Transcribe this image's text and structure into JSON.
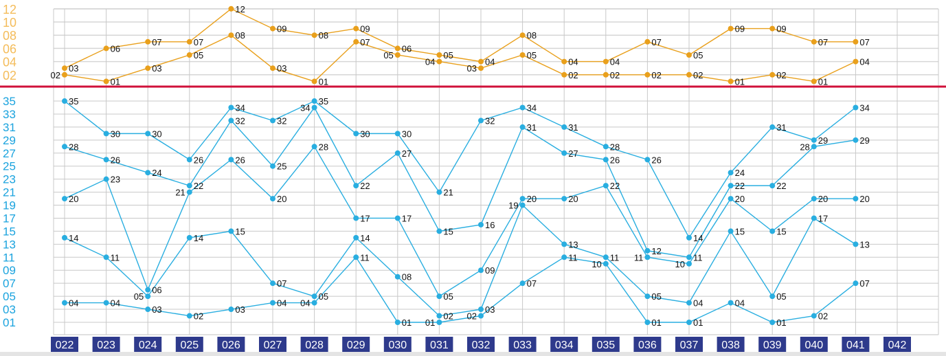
{
  "chart_data": [
    {
      "type": "line",
      "panel": "top",
      "categories": [
        "022",
        "023",
        "024",
        "025",
        "026",
        "027",
        "028",
        "029",
        "030",
        "031",
        "032",
        "033",
        "034",
        "035",
        "036",
        "037",
        "038",
        "039",
        "040",
        "041",
        "042"
      ],
      "y_ticks": [
        "02",
        "04",
        "06",
        "08",
        "10",
        "12"
      ],
      "ylim": [
        0,
        12
      ],
      "grid": true,
      "color": "#e9a01c",
      "tick_color": "#f4bc5a",
      "series": [
        {
          "values": [
            3,
            6,
            7,
            7,
            12,
            9,
            8,
            9,
            6,
            5,
            4,
            8,
            4,
            4,
            7,
            5,
            9,
            9,
            7,
            7,
            null
          ]
        },
        {
          "values": [
            2,
            1,
            3,
            5,
            8,
            3,
            1,
            7,
            5,
            4,
            3,
            5,
            2,
            2,
            2,
            2,
            1,
            2,
            1,
            4,
            null
          ]
        }
      ]
    },
    {
      "type": "line",
      "panel": "bottom",
      "categories": [
        "022",
        "023",
        "024",
        "025",
        "026",
        "027",
        "028",
        "029",
        "030",
        "031",
        "032",
        "033",
        "034",
        "035",
        "036",
        "037",
        "038",
        "039",
        "040",
        "041",
        "042"
      ],
      "y_ticks": [
        "01",
        "03",
        "05",
        "07",
        "09",
        "11",
        "13",
        "15",
        "17",
        "19",
        "21",
        "23",
        "25",
        "27",
        "29",
        "31",
        "33",
        "35"
      ],
      "ylim": [
        1,
        35
      ],
      "grid": true,
      "color": "#29aee0",
      "tick_color": "#1aa3de",
      "series": [
        {
          "values": [
            4,
            4,
            3,
            2,
            3,
            4,
            4,
            11,
            1,
            1,
            2,
            7,
            11,
            10,
            1,
            1,
            4,
            1,
            2,
            7,
            null
          ]
        },
        {
          "values": [
            14,
            11,
            5,
            14,
            15,
            7,
            5,
            14,
            8,
            2,
            3,
            19,
            13,
            11,
            5,
            4,
            15,
            5,
            17,
            13,
            null
          ]
        },
        {
          "values": [
            20,
            23,
            6,
            21,
            26,
            20,
            28,
            17,
            17,
            5,
            9,
            20,
            20,
            22,
            11,
            10,
            20,
            15,
            20,
            20,
            null
          ]
        },
        {
          "values": [
            28,
            26,
            24,
            22,
            32,
            25,
            34,
            22,
            27,
            15,
            16,
            31,
            27,
            26,
            12,
            11,
            22,
            22,
            28,
            29,
            null
          ]
        },
        {
          "values": [
            35,
            30,
            30,
            26,
            34,
            32,
            35,
            30,
            30,
            21,
            32,
            34,
            31,
            28,
            26,
            14,
            24,
            31,
            29,
            34,
            null
          ]
        }
      ]
    }
  ],
  "colors": {
    "divider": "#d0103a",
    "issue_box": "#2e3a8c",
    "grid": "#c8c8c8"
  }
}
